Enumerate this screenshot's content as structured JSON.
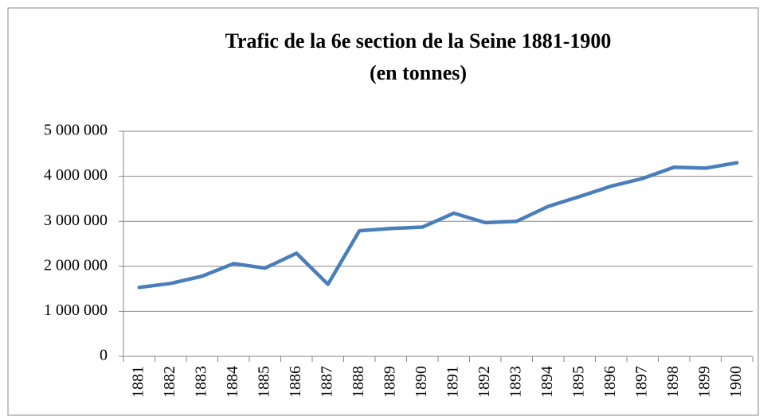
{
  "chart_data": {
    "type": "line",
    "title": "Trafic de la 6e section de la Seine 1881-1900",
    "subtitle": "(en tonnes)",
    "categories": [
      "1881",
      "1882",
      "1883",
      "1884",
      "1885",
      "1886",
      "1887",
      "1888",
      "1889",
      "1890",
      "1891",
      "1892",
      "1893",
      "1894",
      "1895",
      "1896",
      "1897",
      "1898",
      "1899",
      "1900"
    ],
    "series": [
      {
        "name": "Trafic",
        "color": "#4a7ebb",
        "values": [
          1530000,
          1620000,
          1780000,
          2060000,
          1960000,
          2290000,
          1600000,
          2790000,
          2840000,
          2870000,
          3180000,
          2970000,
          3000000,
          3330000,
          3550000,
          3780000,
          3950000,
          4200000,
          4180000,
          4300000
        ]
      }
    ],
    "ylim": [
      0,
      5000000
    ],
    "yticks": [
      0,
      {
        "value": 1000000,
        "label": "1 000 000"
      },
      {
        "value": 2000000,
        "label": "2 000 000"
      },
      {
        "value": 3000000,
        "label": "3 000 000"
      },
      {
        "value": 4000000,
        "label": "4 000 000"
      },
      {
        "value": 5000000,
        "label": "5 000 000"
      }
    ],
    "grid": true
  }
}
